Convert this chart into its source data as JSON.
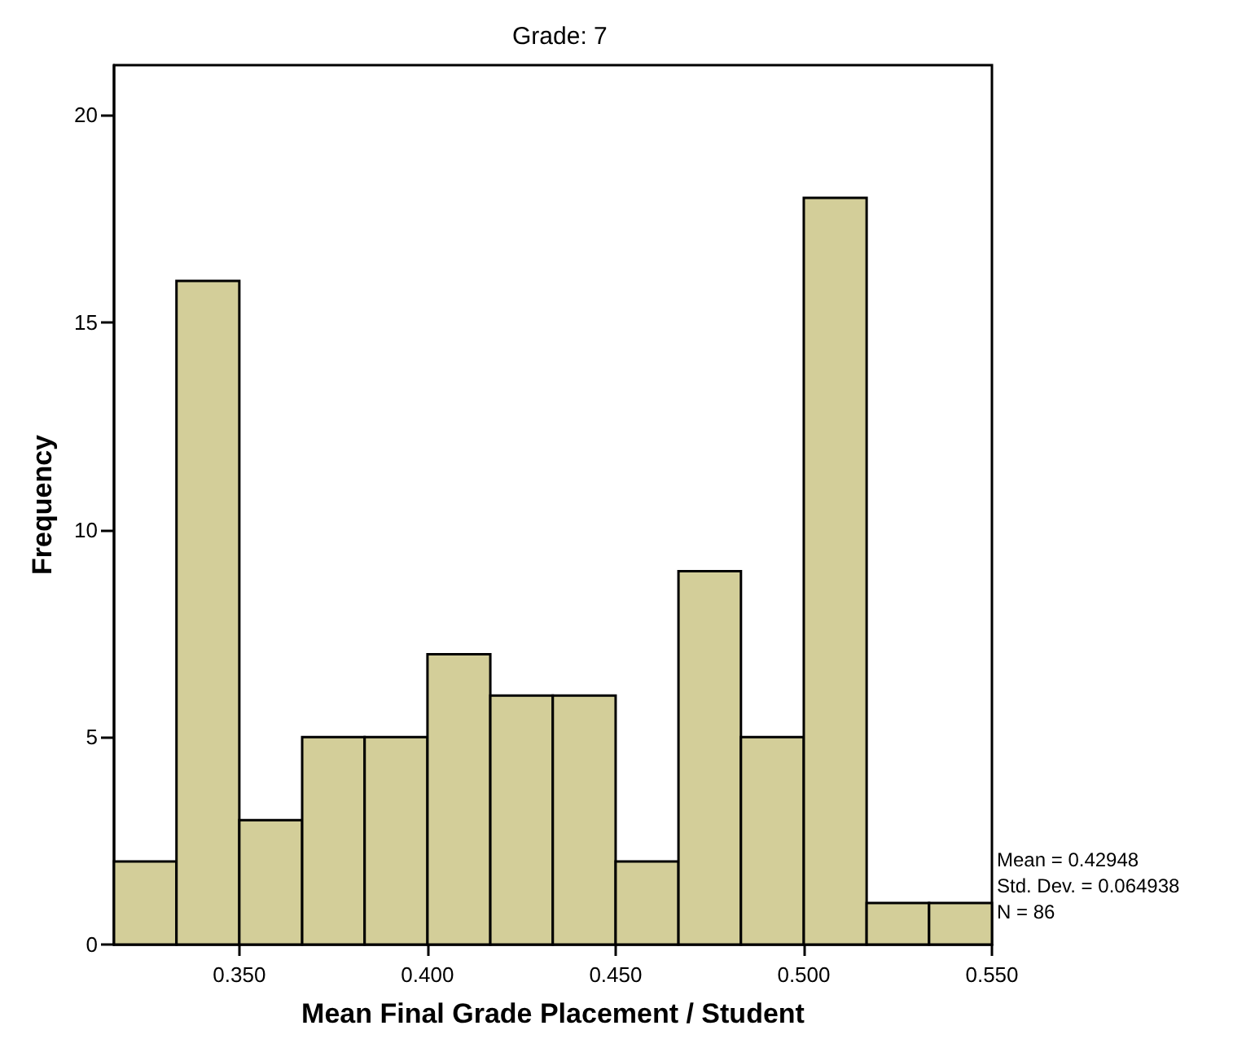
{
  "chart_data": {
    "type": "histogram",
    "title": "Grade: 7",
    "xlabel": "Mean Final Grade Placement / Student",
    "ylabel": "Frequency",
    "bins": [
      0.3167,
      0.3333,
      0.35,
      0.3667,
      0.3833,
      0.4,
      0.4167,
      0.4333,
      0.45,
      0.4667,
      0.4833,
      0.5,
      0.5167,
      0.5333,
      0.55
    ],
    "values": [
      2,
      16,
      3,
      5,
      5,
      7,
      6,
      6,
      2,
      9,
      5,
      18,
      1,
      1
    ],
    "color": "#d3ce99",
    "xlim": [
      0.3167,
      0.55
    ],
    "xticks": [
      {
        "value": 0.35,
        "label": "0.350"
      },
      {
        "value": 0.4,
        "label": "0.400"
      },
      {
        "value": 0.45,
        "label": "0.450"
      },
      {
        "value": 0.5,
        "label": "0.500"
      },
      {
        "value": 0.55,
        "label": "0.550"
      }
    ],
    "ylim": [
      0,
      21.2
    ],
    "yticks": [
      0,
      5,
      10,
      15,
      20
    ],
    "grid": false,
    "annotations": [
      "Mean = 0.42948",
      "Std. Dev. = 0.064938",
      "N = 86"
    ]
  }
}
